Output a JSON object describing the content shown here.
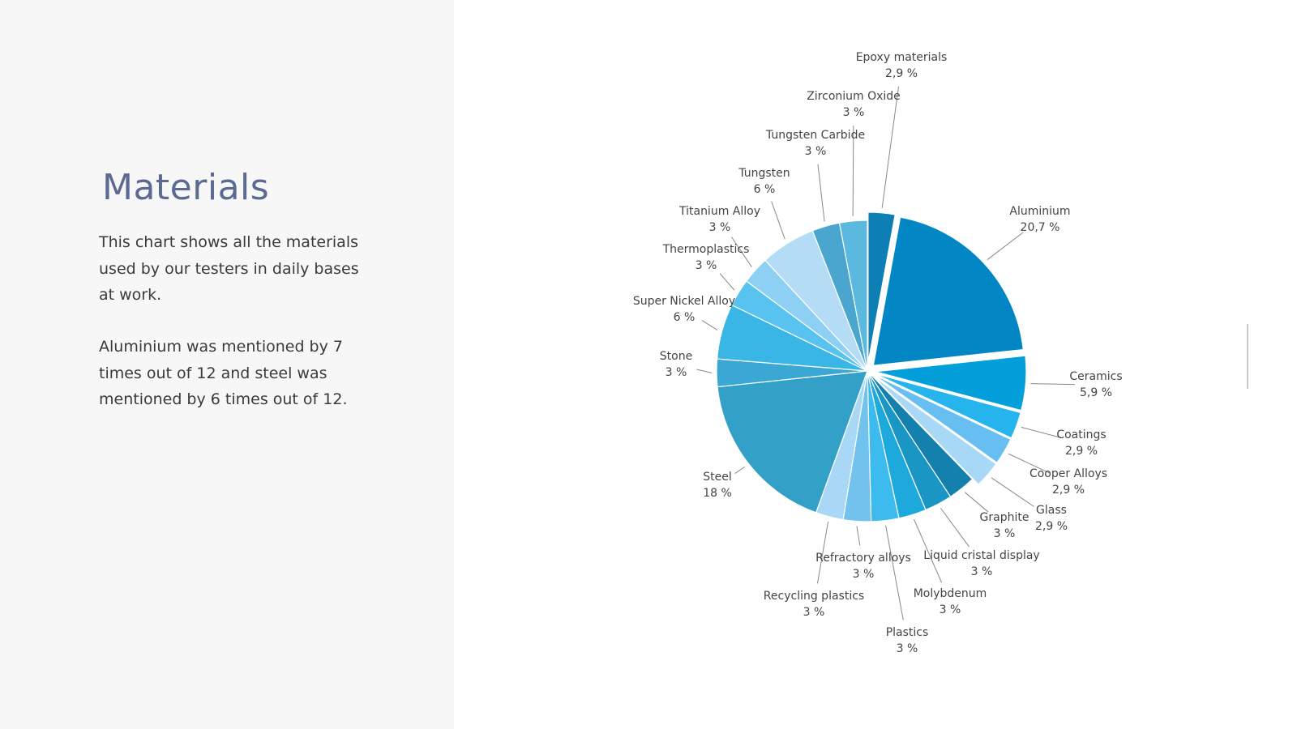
{
  "panel": {
    "title": "Materials",
    "description_1": "This chart shows all the materials used by our testers in daily bases at work.",
    "description_2": "Aluminium was mentioned by 7 times out of 12 and steel was mentioned by 6 times out of 12."
  },
  "chart_data": {
    "type": "pie",
    "title": "",
    "start": "12 o'clock, clockwise",
    "slices": [
      {
        "label": "Epoxy materials",
        "display": "2,9 %",
        "value": 2.9,
        "color": "#0d7fb5",
        "exploded": true
      },
      {
        "label": "Aluminium",
        "display": "20,7 %",
        "value": 20.7,
        "color": "#0387c4",
        "exploded": true
      },
      {
        "label": "Ceramics",
        "display": "5,9 %",
        "value": 5.9,
        "color": "#039fdb",
        "exploded": true
      },
      {
        "label": "Coatings",
        "display": "2,9 %",
        "value": 2.9,
        "color": "#26b4ec",
        "exploded": true
      },
      {
        "label": "Cooper Alloys",
        "display": "2,9 %",
        "value": 2.9,
        "color": "#66bff0",
        "exploded": true
      },
      {
        "label": "Glass",
        "display": "2,9 %",
        "value": 2.9,
        "color": "#a7d8f6",
        "exploded": true
      },
      {
        "label": "Graphite",
        "display": "3 %",
        "value": 3.0,
        "color": "#1480ad",
        "exploded": false
      },
      {
        "label": "Liquid cristal display",
        "display": "3 %",
        "value": 3.0,
        "color": "#1a96c4",
        "exploded": false
      },
      {
        "label": "Molybdenum",
        "display": "3 %",
        "value": 3.0,
        "color": "#1ea9dc",
        "exploded": false
      },
      {
        "label": "Plastics",
        "display": "3 %",
        "value": 3.0,
        "color": "#3ebbee",
        "exploded": false
      },
      {
        "label": "Refractory alloys",
        "display": "3 %",
        "value": 3.0,
        "color": "#72c2ee",
        "exploded": false
      },
      {
        "label": "Recycling plastics",
        "display": "3 %",
        "value": 3.0,
        "color": "#a9d8f6",
        "exploded": false
      },
      {
        "label": "Steel",
        "display": "18 %",
        "value": 18.0,
        "color": "#33a0c8",
        "exploded": false
      },
      {
        "label": "Stone",
        "display": "3 %",
        "value": 3.0,
        "color": "#3aa7d4",
        "exploded": false
      },
      {
        "label": "Super Nickel Alloy",
        "display": "6 %",
        "value": 6.0,
        "color": "#3ab6e6",
        "exploded": false
      },
      {
        "label": "Thermoplastics",
        "display": "3 %",
        "value": 3.0,
        "color": "#58c3ef",
        "exploded": false
      },
      {
        "label": "Titanium Alloy",
        "display": "3 %",
        "value": 3.0,
        "color": "#8dd0f3",
        "exploded": false
      },
      {
        "label": "Tungsten",
        "display": "6 %",
        "value": 6.0,
        "color": "#b5dcf5",
        "exploded": false
      },
      {
        "label": "Tungsten Carbide",
        "display": "3 %",
        "value": 3.0,
        "color": "#4aa6cf",
        "exploded": false
      },
      {
        "label": "Zirconium Oxide",
        "display": "3 %",
        "value": 3.0,
        "color": "#5bb8de",
        "exploded": false
      }
    ]
  }
}
